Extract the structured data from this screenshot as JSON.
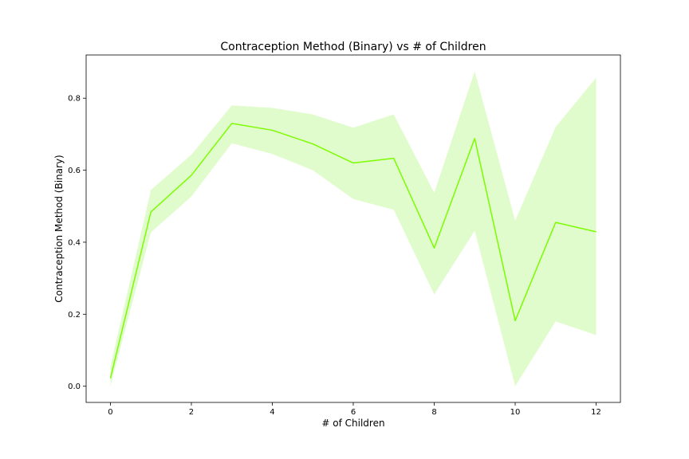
{
  "chart_data": {
    "type": "line",
    "title": "Contraception Method (Binary) vs # of Children",
    "xlabel": "# of Children",
    "ylabel": "Contraception Method (Binary)",
    "xlim": [
      -0.6,
      12.6
    ],
    "ylim": [
      -0.045,
      0.92
    ],
    "xticks": [
      0,
      2,
      4,
      6,
      8,
      10,
      12
    ],
    "yticks": [
      0.0,
      0.2,
      0.4,
      0.6,
      0.8
    ],
    "ytick_labels": [
      "0.0",
      "0.2",
      "0.4",
      "0.6",
      "0.8"
    ],
    "grid": false,
    "line_color": "#7cfc00",
    "band_color": "#e1fccc",
    "series": [
      {
        "x": [
          0,
          1,
          2,
          3,
          4,
          5,
          6,
          7,
          8,
          9,
          10,
          11,
          12
        ],
        "y": [
          0.022,
          0.484,
          0.586,
          0.73,
          0.711,
          0.673,
          0.62,
          0.633,
          0.384,
          0.688,
          0.182,
          0.455,
          0.429
        ],
        "ci_low": [
          0.0,
          0.427,
          0.527,
          0.675,
          0.645,
          0.6,
          0.52,
          0.49,
          0.255,
          0.432,
          0.0,
          0.18,
          0.142
        ],
        "ci_high": [
          0.055,
          0.545,
          0.643,
          0.78,
          0.773,
          0.755,
          0.718,
          0.755,
          0.537,
          0.875,
          0.46,
          0.72,
          0.857
        ]
      }
    ]
  }
}
